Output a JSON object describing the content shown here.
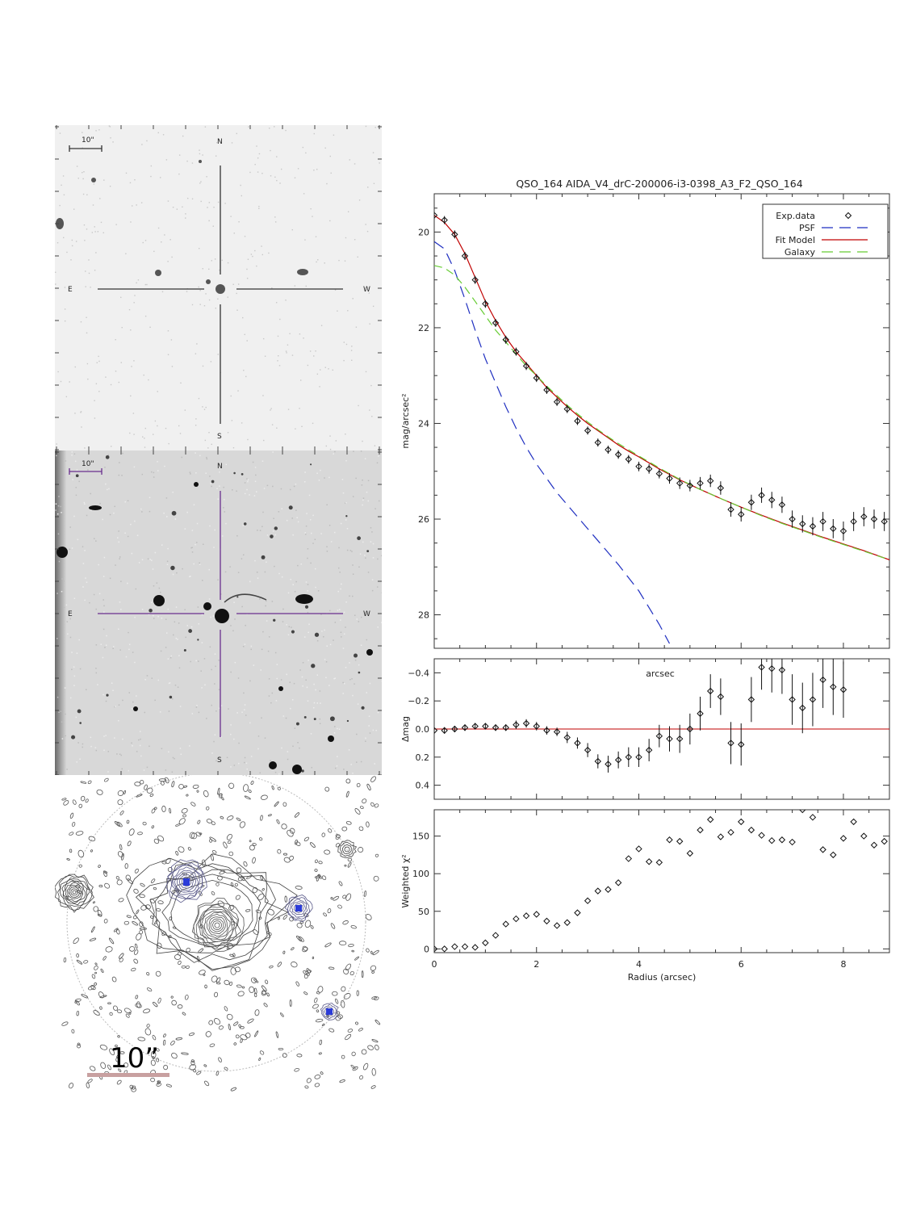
{
  "images": {
    "top": {
      "scale_label": "10\"",
      "compass": {
        "n": "N",
        "s": "S",
        "e": "E",
        "w": "W"
      }
    },
    "middle": {
      "scale_label": "10\"",
      "compass": {
        "n": "N",
        "s": "S",
        "e": "E",
        "w": "W"
      }
    },
    "bottom": {
      "scale_label": "10”"
    }
  },
  "chart_data": [
    {
      "type": "line",
      "title": "QSO_164  AIDA_V4_drC-200006-i3-0398_A3_F2_QSO_164",
      "xlabel": "",
      "ylabel": "mag/arcsec²",
      "xlim": [
        0,
        8.9
      ],
      "ylim": [
        28.7,
        19.2
      ],
      "yticks": [
        20,
        22,
        24,
        26,
        28
      ],
      "legend": {
        "placement": "top-right",
        "entries": [
          "Exp.data",
          "PSF",
          "Fit Model",
          "Galaxy"
        ]
      },
      "series": [
        {
          "name": "Exp.data",
          "style": "diamond",
          "color": "#000000",
          "x": [
            0.0,
            0.2,
            0.4,
            0.6,
            0.8,
            1.0,
            1.2,
            1.4,
            1.6,
            1.8,
            2.0,
            2.2,
            2.4,
            2.6,
            2.8,
            3.0,
            3.2,
            3.4,
            3.6,
            3.8,
            4.0,
            4.2,
            4.4,
            4.6,
            4.8,
            5.0,
            5.2,
            5.4,
            5.6,
            5.8,
            6.0,
            6.2,
            6.4,
            6.6,
            6.8,
            7.0,
            7.2,
            7.4,
            7.6,
            7.8,
            8.0,
            8.2,
            8.4,
            8.6,
            8.8
          ],
          "y": [
            19.65,
            19.75,
            20.05,
            20.5,
            21.0,
            21.5,
            21.9,
            22.25,
            22.5,
            22.8,
            23.05,
            23.3,
            23.55,
            23.7,
            23.95,
            24.15,
            24.4,
            24.55,
            24.65,
            24.75,
            24.9,
            24.95,
            25.05,
            25.15,
            25.25,
            25.3,
            25.25,
            25.2,
            25.35,
            25.8,
            25.9,
            25.65,
            25.5,
            25.6,
            25.7,
            26.0,
            26.1,
            26.15,
            26.05,
            26.2,
            26.25,
            26.05,
            25.95,
            26.0,
            26.05
          ],
          "err": [
            0.03,
            0.03,
            0.03,
            0.03,
            0.04,
            0.04,
            0.05,
            0.05,
            0.05,
            0.06,
            0.06,
            0.06,
            0.07,
            0.07,
            0.07,
            0.08,
            0.08,
            0.08,
            0.09,
            0.09,
            0.1,
            0.1,
            0.1,
            0.11,
            0.12,
            0.12,
            0.13,
            0.13,
            0.14,
            0.15,
            0.15,
            0.16,
            0.16,
            0.17,
            0.17,
            0.18,
            0.18,
            0.19,
            0.2,
            0.2,
            0.2,
            0.2,
            0.2,
            0.2,
            0.2
          ]
        },
        {
          "name": "PSF",
          "style": "dash",
          "color": "#1f2fc0",
          "x": [
            0.0,
            0.2,
            0.4,
            0.6,
            0.8,
            1.0,
            1.2,
            1.4,
            1.6,
            1.8,
            2.0,
            2.4,
            2.8,
            3.2,
            3.6,
            4.0,
            4.4,
            4.6
          ],
          "y": [
            20.2,
            20.35,
            20.8,
            21.4,
            22.05,
            22.65,
            23.15,
            23.65,
            24.1,
            24.5,
            24.85,
            25.45,
            25.95,
            26.45,
            26.95,
            27.5,
            28.2,
            28.6
          ]
        },
        {
          "name": "Fit Model",
          "style": "solid",
          "color": "#c00000",
          "x": [
            0.0,
            0.2,
            0.4,
            0.6,
            0.8,
            1.0,
            1.2,
            1.4,
            1.6,
            1.8,
            2.0,
            2.2,
            2.4,
            2.6,
            2.8,
            3.0,
            3.2,
            3.4,
            3.6,
            3.8,
            4.0,
            4.4,
            4.8,
            5.2,
            5.6,
            6.0,
            6.4,
            6.8,
            7.2,
            7.6,
            8.0,
            8.4,
            8.9
          ],
          "y": [
            19.65,
            19.8,
            20.05,
            20.45,
            20.95,
            21.45,
            21.85,
            22.2,
            22.5,
            22.75,
            23.0,
            23.25,
            23.45,
            23.65,
            23.83,
            24.0,
            24.15,
            24.3,
            24.45,
            24.58,
            24.7,
            24.95,
            25.18,
            25.38,
            25.57,
            25.75,
            25.92,
            26.08,
            26.23,
            26.38,
            26.52,
            26.66,
            26.85
          ]
        },
        {
          "name": "Galaxy",
          "style": "dash",
          "color": "#66cc33",
          "x": [
            0.0,
            0.2,
            0.4,
            0.6,
            0.8,
            1.0,
            1.2,
            1.4,
            1.6,
            1.8,
            2.0,
            2.2,
            2.4,
            2.6,
            2.8,
            3.0,
            3.2,
            3.4,
            3.6,
            3.8,
            4.0,
            4.4,
            4.8,
            5.2,
            5.6,
            6.0,
            6.4,
            6.8,
            7.2,
            7.6,
            8.0,
            8.4,
            8.9
          ],
          "y": [
            20.7,
            20.75,
            20.9,
            21.15,
            21.45,
            21.75,
            22.05,
            22.3,
            22.55,
            22.8,
            23.0,
            23.22,
            23.42,
            23.62,
            23.8,
            23.97,
            24.13,
            24.28,
            24.42,
            24.55,
            24.68,
            24.93,
            25.17,
            25.38,
            25.57,
            25.75,
            25.93,
            26.09,
            26.24,
            26.39,
            26.53,
            26.67,
            26.85
          ]
        }
      ]
    },
    {
      "type": "scatter",
      "title": "",
      "annotation": "arcsec",
      "ylabel": "Δmag",
      "xlim": [
        0,
        8.9
      ],
      "ylim": [
        0.5,
        -0.5
      ],
      "yticks": [
        0.4,
        0.2,
        0.0,
        -0.2,
        -0.4
      ],
      "ytick_labels": [
        "0.4",
        "0.2",
        "0.0",
        "−0.2",
        "−0.4"
      ],
      "reference_line": {
        "y": 0.0,
        "color": "#c00000"
      },
      "x": [
        0.0,
        0.2,
        0.4,
        0.6,
        0.8,
        1.0,
        1.2,
        1.4,
        1.6,
        1.8,
        2.0,
        2.2,
        2.4,
        2.6,
        2.8,
        3.0,
        3.2,
        3.4,
        3.6,
        3.8,
        4.0,
        4.2,
        4.4,
        4.6,
        4.8,
        5.0,
        5.2,
        5.4,
        5.6,
        5.8,
        6.0,
        6.2,
        6.4,
        6.6,
        6.8,
        7.0,
        7.2,
        7.4,
        7.6,
        7.8,
        8.0
      ],
      "y": [
        0.01,
        0.01,
        0.0,
        -0.01,
        -0.02,
        -0.02,
        -0.01,
        -0.01,
        -0.03,
        -0.04,
        -0.02,
        0.01,
        0.02,
        0.06,
        0.1,
        0.15,
        0.23,
        0.25,
        0.22,
        0.2,
        0.2,
        0.15,
        0.05,
        0.07,
        0.07,
        0.0,
        -0.11,
        -0.27,
        -0.23,
        0.1,
        0.11,
        -0.21,
        -0.44,
        -0.43,
        -0.42,
        -0.21,
        -0.15,
        -0.21,
        -0.35,
        -0.3,
        -0.28
      ],
      "err": [
        0.02,
        0.02,
        0.02,
        0.02,
        0.02,
        0.02,
        0.02,
        0.02,
        0.03,
        0.03,
        0.03,
        0.03,
        0.03,
        0.04,
        0.04,
        0.05,
        0.05,
        0.06,
        0.06,
        0.07,
        0.07,
        0.08,
        0.08,
        0.09,
        0.1,
        0.11,
        0.12,
        0.12,
        0.13,
        0.15,
        0.15,
        0.16,
        0.16,
        0.17,
        0.17,
        0.18,
        0.18,
        0.19,
        0.2,
        0.2,
        0.2
      ]
    },
    {
      "type": "scatter",
      "title": "",
      "xlabel": "Radius (arcsec)",
      "ylabel": "Weighted χ²",
      "xlim": [
        0,
        8.9
      ],
      "ylim": [
        -5,
        185
      ],
      "xticks": [
        0,
        2,
        4,
        6,
        8
      ],
      "yticks": [
        0,
        50,
        100,
        150
      ],
      "x": [
        0.0,
        0.2,
        0.4,
        0.6,
        0.8,
        1.0,
        1.2,
        1.4,
        1.6,
        1.8,
        2.0,
        2.2,
        2.4,
        2.6,
        2.8,
        3.0,
        3.2,
        3.4,
        3.6,
        3.8,
        4.0,
        4.2,
        4.4,
        4.6,
        4.8,
        5.0,
        5.2,
        5.4,
        5.6,
        5.8,
        6.0,
        6.2,
        6.4,
        6.6,
        6.8,
        7.0,
        7.2,
        7.4,
        7.6,
        7.8,
        8.0,
        8.2,
        8.4,
        8.6,
        8.8
      ],
      "y": [
        0,
        0,
        3,
        3,
        2,
        8,
        18,
        33,
        40,
        44,
        46,
        37,
        31,
        35,
        48,
        64,
        77,
        79,
        88,
        120,
        133,
        116,
        115,
        145,
        143,
        127,
        158,
        172,
        149,
        155,
        169,
        158,
        151,
        144,
        145,
        142,
        185,
        175,
        132,
        125,
        147,
        169,
        150,
        138,
        143
      ]
    }
  ]
}
